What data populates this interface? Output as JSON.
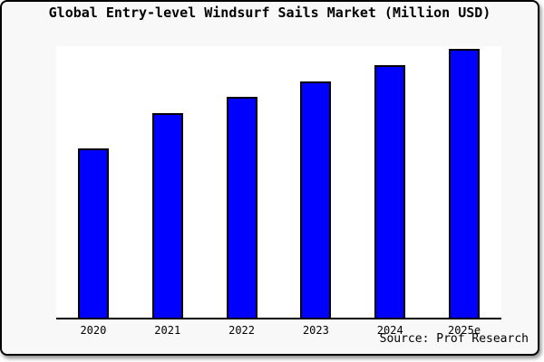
{
  "title": "Global Entry-level Windsurf Sails Market (Million USD)",
  "source": "Source: Prof Research",
  "colors": {
    "bar_fill": "#0000ff",
    "bar_border": "#000000",
    "axis": "#000000",
    "plot_bg": "#ffffff",
    "card_bg": "#f8f8f8",
    "text": "#000000"
  },
  "chart_data": {
    "type": "bar",
    "title": "Global Entry-level Windsurf Sails Market (Million USD)",
    "categories": [
      "2020",
      "2021",
      "2022",
      "2023",
      "2024",
      "2025e"
    ],
    "values": [
      63,
      76,
      82,
      88,
      94,
      100
    ],
    "values_note": "No y-axis ticks or data labels are shown in the image; values are relative estimates read from bar heights with the tallest bar (2025e) scaled to 100.",
    "xlabel": "",
    "ylabel": "",
    "ylim": [
      0,
      101
    ],
    "grid": false,
    "legend": "none",
    "source_annotation": "Source: Prof Research"
  }
}
